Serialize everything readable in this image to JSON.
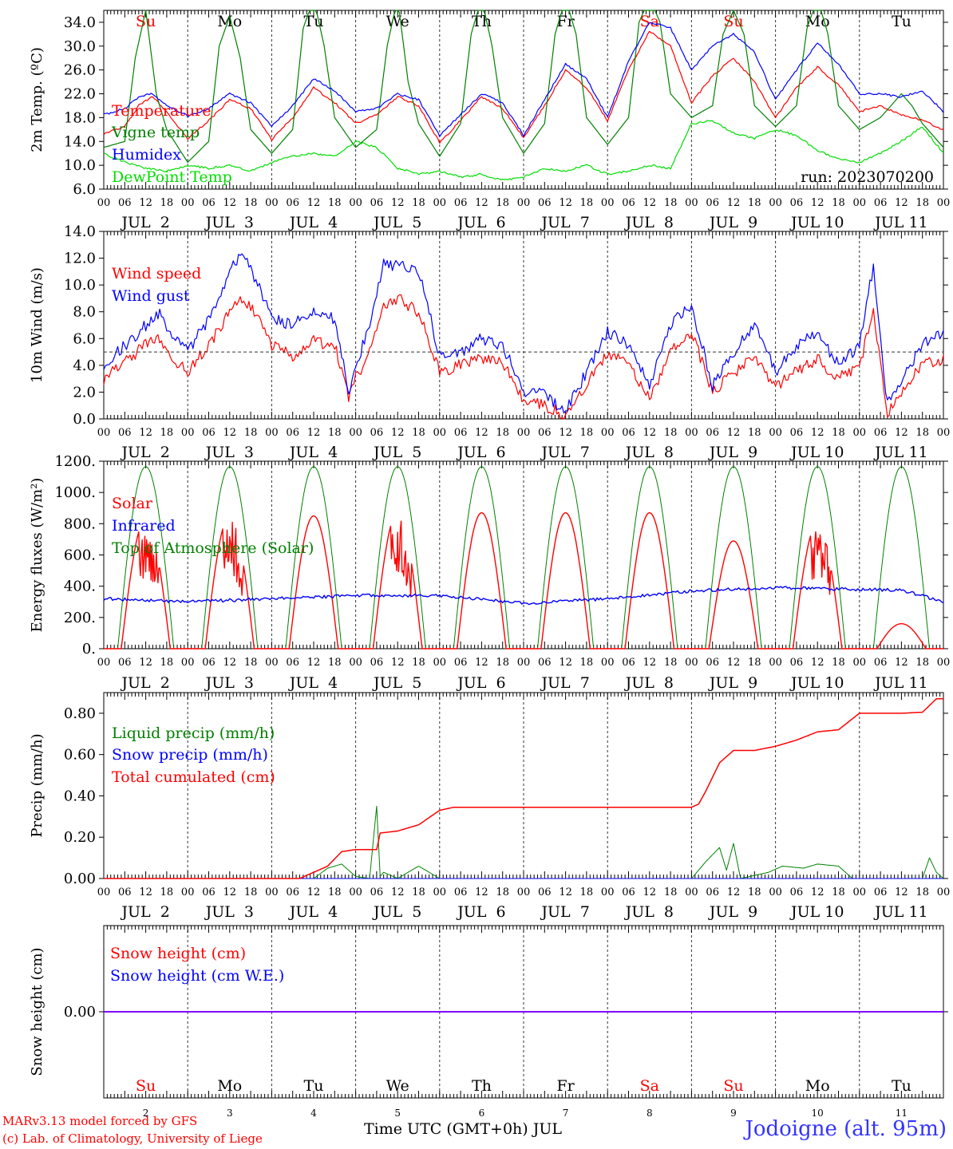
{
  "footer": {
    "model": "MARv3.13 model forced by GFS",
    "copyright": "(c) Lab. of Climatology, University of Liege",
    "station": "Jodoigne (alt. 95m)",
    "xlabel": "Time UTC (GMT+0h) JUL"
  },
  "colors": {
    "red": "#ff0000",
    "green": "#008000",
    "blue": "#0000ff",
    "lightgreen": "#00dd00",
    "purple": "#7f00ff",
    "grid": "#555555"
  },
  "time_axis": {
    "days": [
      "2",
      "3",
      "4",
      "5",
      "6",
      "7",
      "8",
      "9",
      "10",
      "11"
    ],
    "day_labels": [
      "JUL  2",
      "JUL  3",
      "JUL  4",
      "JUL  5",
      "JUL  6",
      "JUL  7",
      "JUL  8",
      "JUL  9",
      "JUL 10",
      "JUL 11"
    ],
    "weekdays": [
      "Su",
      "Mo",
      "Tu",
      "We",
      "Th",
      "Fr",
      "Sa",
      "Su",
      "Mo",
      "Tu"
    ],
    "weekend_flags": [
      true,
      false,
      false,
      false,
      false,
      false,
      true,
      true,
      false,
      false
    ],
    "hour_ticks": [
      "00",
      "06",
      "12",
      "18"
    ],
    "end_tick": "00"
  },
  "chart_data": [
    {
      "type": "line",
      "ylabel": "2m Temp. (ºC)",
      "ylim": [
        6.0,
        36.0
      ],
      "yticks": [
        "6.0",
        "10.0",
        "14.0",
        "18.0",
        "22.0",
        "26.0",
        "30.0",
        "34.0"
      ],
      "annotation": "run: 2023070200",
      "x_unit": "hours since JUL 2 00 UTC",
      "series": [
        {
          "name": "Temperature",
          "color": "#ff0000",
          "x": [
            0,
            6,
            10,
            14,
            18,
            24,
            30,
            36,
            42,
            48,
            54,
            60,
            66,
            72,
            78,
            84,
            90,
            96,
            102,
            108,
            114,
            120,
            126,
            132,
            138,
            144,
            150,
            156,
            162,
            168,
            174,
            180,
            186,
            192,
            198,
            204,
            210,
            216,
            222,
            228,
            234,
            240
          ],
          "values": [
            15.3,
            16.5,
            20.0,
            21.5,
            19.0,
            14.5,
            17.5,
            21.0,
            19.5,
            14.3,
            18.0,
            23.0,
            20.5,
            17.0,
            18.5,
            21.5,
            20.0,
            13.8,
            17.5,
            21.5,
            19.5,
            14.7,
            20.0,
            26.0,
            23.0,
            17.5,
            26.0,
            32.5,
            30.0,
            20.5,
            25.0,
            28.0,
            24.0,
            18.0,
            23.0,
            26.5,
            23.5,
            19.0,
            20.0,
            18.5,
            17.5,
            16.0
          ]
        },
        {
          "name": "Vigne temp",
          "color": "#008000",
          "x": [
            0,
            6,
            9,
            12,
            15,
            18,
            24,
            30,
            33,
            36,
            39,
            42,
            48,
            54,
            57,
            60,
            63,
            66,
            72,
            78,
            81,
            84,
            87,
            90,
            96,
            102,
            105,
            108,
            111,
            114,
            120,
            126,
            129,
            132,
            135,
            138,
            144,
            150,
            153,
            156,
            159,
            162,
            168,
            174,
            177,
            180,
            183,
            186,
            192,
            198,
            201,
            204,
            207,
            210,
            216,
            222,
            225,
            228,
            231,
            234,
            240
          ],
          "values": [
            13.0,
            14.0,
            28.0,
            36.0,
            22.0,
            16.0,
            10.5,
            14.0,
            30.0,
            35.0,
            28.0,
            16.0,
            12.0,
            16.0,
            33.0,
            38.0,
            30.0,
            18.0,
            13.0,
            16.0,
            30.0,
            38.0,
            24.0,
            17.0,
            11.5,
            17.0,
            32.0,
            38.0,
            30.0,
            18.0,
            12.0,
            17.0,
            32.0,
            38.0,
            32.0,
            18.0,
            13.5,
            18.0,
            34.0,
            38.0,
            34.0,
            22.0,
            18.0,
            20.0,
            32.0,
            36.0,
            32.0,
            20.0,
            16.5,
            20.0,
            33.0,
            38.0,
            32.0,
            20.0,
            16.0,
            18.0,
            20.0,
            22.0,
            20.0,
            17.0,
            13.0
          ]
        },
        {
          "name": "Humidex",
          "color": "#0000ff",
          "x": [
            0,
            6,
            10,
            14,
            18,
            24,
            30,
            36,
            42,
            48,
            54,
            60,
            66,
            72,
            78,
            84,
            90,
            96,
            102,
            108,
            114,
            120,
            126,
            132,
            138,
            144,
            150,
            156,
            162,
            168,
            174,
            180,
            186,
            192,
            198,
            204,
            210,
            216,
            222,
            228,
            234,
            240
          ],
          "values": [
            18.5,
            19.5,
            21.5,
            22.0,
            20.0,
            18.3,
            19.5,
            22.0,
            20.5,
            16.5,
            20.0,
            24.5,
            22.5,
            19.0,
            19.5,
            22.0,
            21.0,
            15.0,
            18.5,
            22.0,
            20.5,
            15.0,
            21.0,
            27.0,
            24.5,
            18.0,
            27.5,
            34.0,
            33.0,
            26.0,
            30.0,
            32.0,
            29.0,
            21.0,
            26.0,
            30.5,
            27.0,
            22.0,
            22.0,
            21.5,
            22.5,
            19.0
          ]
        },
        {
          "name": "DewPoint Temp",
          "color": "#00dd00",
          "x": [
            0,
            6,
            12,
            18,
            24,
            30,
            36,
            42,
            48,
            54,
            60,
            66,
            72,
            78,
            84,
            90,
            96,
            102,
            108,
            114,
            120,
            126,
            132,
            138,
            144,
            150,
            156,
            162,
            168,
            174,
            180,
            186,
            192,
            198,
            204,
            210,
            216,
            222,
            228,
            234,
            240
          ],
          "values": [
            12.0,
            10.5,
            9.5,
            9.0,
            10.0,
            9.5,
            10.0,
            9.0,
            10.5,
            11.5,
            12.0,
            11.5,
            14.0,
            13.0,
            9.5,
            8.5,
            9.0,
            8.0,
            8.5,
            7.5,
            8.0,
            9.5,
            9.0,
            10.0,
            8.5,
            9.0,
            10.0,
            9.5,
            17.0,
            17.5,
            15.5,
            14.5,
            16.0,
            15.0,
            12.5,
            11.0,
            10.5,
            12.0,
            14.0,
            16.5,
            12.0
          ]
        }
      ]
    },
    {
      "type": "line",
      "ylabel": "10m Wind (m/s)",
      "ylim": [
        0.0,
        14.0
      ],
      "yticks": [
        "0.0",
        "2.0",
        "4.0",
        "6.0",
        "8.0",
        "10.0",
        "12.0",
        "14.0"
      ],
      "reference_line": 5.0,
      "x_unit": "hours since JUL 2 00 UTC",
      "series": [
        {
          "name": "Wind speed",
          "color": "#ff0000",
          "x": [
            0,
            6,
            12,
            16,
            20,
            24,
            30,
            36,
            40,
            44,
            48,
            54,
            60,
            66,
            70,
            72,
            76,
            80,
            84,
            90,
            96,
            102,
            108,
            114,
            120,
            126,
            132,
            138,
            144,
            150,
            156,
            162,
            168,
            174,
            180,
            186,
            192,
            198,
            204,
            210,
            216,
            220,
            224,
            228,
            234,
            240
          ],
          "values": [
            3.0,
            4.3,
            5.5,
            6.0,
            4.5,
            3.5,
            5.5,
            8.0,
            9.0,
            7.5,
            5.5,
            4.7,
            5.8,
            5.5,
            1.5,
            3.0,
            5.0,
            8.5,
            9.0,
            8.0,
            3.5,
            4.0,
            4.5,
            4.2,
            1.5,
            1.0,
            0.2,
            2.5,
            5.0,
            4.0,
            1.5,
            5.0,
            6.5,
            2.0,
            3.5,
            4.5,
            2.5,
            3.5,
            4.5,
            3.0,
            4.0,
            8.0,
            0.5,
            2.0,
            4.0,
            4.5
          ]
        },
        {
          "name": "Wind gust",
          "color": "#0000ff",
          "x": [
            0,
            6,
            12,
            16,
            20,
            24,
            30,
            36,
            40,
            44,
            48,
            54,
            60,
            66,
            70,
            72,
            76,
            80,
            84,
            90,
            96,
            102,
            108,
            114,
            120,
            126,
            132,
            138,
            144,
            150,
            156,
            162,
            168,
            174,
            180,
            186,
            192,
            198,
            204,
            210,
            216,
            220,
            224,
            228,
            234,
            240
          ],
          "values": [
            4.0,
            5.5,
            7.0,
            8.0,
            6.0,
            5.0,
            7.5,
            11.0,
            12.5,
            10.0,
            7.5,
            7.0,
            8.0,
            7.5,
            2.0,
            4.0,
            7.0,
            11.5,
            11.5,
            11.0,
            4.8,
            5.0,
            6.0,
            5.5,
            2.0,
            1.8,
            0.5,
            3.5,
            6.5,
            5.5,
            2.5,
            7.0,
            8.5,
            2.5,
            5.0,
            7.0,
            3.5,
            5.5,
            6.5,
            4.0,
            5.5,
            11.5,
            1.0,
            3.0,
            5.5,
            6.5
          ]
        }
      ]
    },
    {
      "type": "line",
      "ylabel": "Energy fluxes (W/m²)",
      "ylim": [
        0,
        1200
      ],
      "yticks": [
        "0.",
        "200.",
        "400.",
        "600.",
        "800.",
        "1000.",
        "1200."
      ],
      "x_unit": "hours since JUL 2 00 UTC",
      "series": [
        {
          "name": "Solar",
          "color": "#ff0000",
          "day_peaks": [
            830,
            850,
            850,
            870,
            870,
            870,
            870,
            690,
            800,
            160
          ]
        },
        {
          "name": "Infrared",
          "color": "#0000ff",
          "x": [
            0,
            24,
            48,
            72,
            96,
            120,
            144,
            168,
            192,
            216,
            228,
            240
          ],
          "values": [
            320,
            300,
            320,
            340,
            340,
            290,
            320,
            370,
            390,
            380,
            375,
            300
          ]
        },
        {
          "name": "Top of Atmosphere (Solar)",
          "color": "#008000",
          "day_peak": 1165,
          "sunrise_hour": 4,
          "sunset_hour": 20
        }
      ]
    },
    {
      "type": "line",
      "ylabel": "Precip (mm/h)",
      "ylim": [
        0.0,
        0.9
      ],
      "yticks": [
        "0.00",
        "0.20",
        "0.40",
        "0.60",
        "0.80"
      ],
      "x_unit": "hours since JUL 2 00 UTC",
      "series": [
        {
          "name": "Liquid precip (mm/h)",
          "color": "#008000",
          "x": [
            0,
            60,
            64,
            68,
            72,
            76,
            78,
            79,
            80,
            84,
            90,
            96,
            100,
            168,
            172,
            176,
            178,
            180,
            182,
            190,
            194,
            200,
            204,
            210,
            214,
            220,
            234,
            236,
            238,
            240
          ],
          "values": [
            0,
            0,
            0.05,
            0.07,
            0.01,
            0.0,
            0.35,
            0.01,
            0.03,
            0.0,
            0.06,
            0.0,
            0.0,
            0.0,
            0.08,
            0.15,
            0.04,
            0.17,
            0.0,
            0.03,
            0.06,
            0.05,
            0.07,
            0.06,
            0.0,
            0.0,
            0.0,
            0.1,
            0.03,
            0.0
          ]
        },
        {
          "name": "Snow precip (mm/h)",
          "color": "#0000ff",
          "x": [
            0,
            240
          ],
          "values": [
            0,
            0
          ]
        },
        {
          "name": "Total cumulated (cm)",
          "color": "#ff0000",
          "x": [
            0,
            56,
            64,
            68,
            72,
            76,
            78,
            79,
            84,
            90,
            96,
            100,
            168,
            170,
            172,
            174,
            176,
            180,
            186,
            192,
            198,
            204,
            210,
            216,
            228,
            234,
            238,
            240
          ],
          "values": [
            0,
            0,
            0.06,
            0.13,
            0.14,
            0.14,
            0.14,
            0.22,
            0.23,
            0.26,
            0.33,
            0.345,
            0.345,
            0.36,
            0.42,
            0.49,
            0.56,
            0.62,
            0.62,
            0.64,
            0.67,
            0.71,
            0.72,
            0.8,
            0.8,
            0.805,
            0.87,
            0.87
          ]
        }
      ]
    },
    {
      "type": "line",
      "ylabel": "Snow height (cm)",
      "ylim": [
        -1.0,
        1.0
      ],
      "yticks": [
        "0.00"
      ],
      "x_unit": "hours since JUL 2 00 UTC",
      "series": [
        {
          "name": "Snow height (cm)",
          "color": "#ff0000",
          "x": [
            0,
            240
          ],
          "values": [
            0,
            0
          ]
        },
        {
          "name": "Snow height (cm W.E.)",
          "color": "#0000ff",
          "x": [
            0,
            240
          ],
          "values": [
            0,
            0
          ]
        }
      ]
    }
  ]
}
